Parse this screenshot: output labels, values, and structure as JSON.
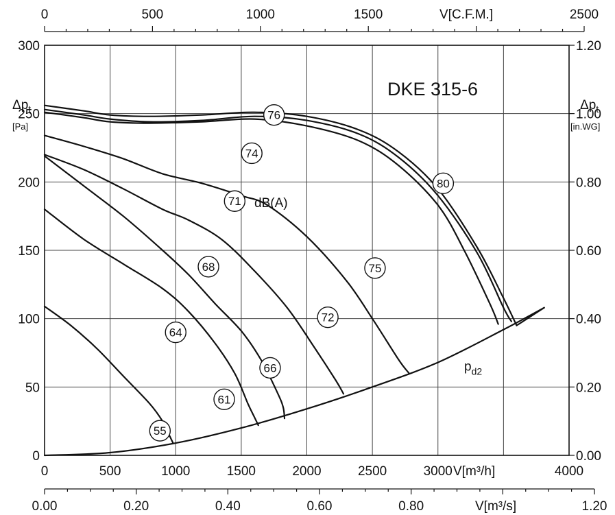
{
  "chart_data": {
    "type": "line",
    "title": "DKE 315-6",
    "left_axis": {
      "label_main": "Δp",
      "label_sub": "t",
      "unit": "[Pa]",
      "range": [
        0,
        300
      ],
      "ticks": [
        "0",
        "50",
        "100",
        "150",
        "200",
        "250",
        "300"
      ]
    },
    "right_axis": {
      "label_main": "Δp",
      "label_sub": "t",
      "unit": "[in.WG]",
      "range": [
        0,
        1.2
      ],
      "ticks": [
        "0.00",
        "0.20",
        "0.40",
        "0.60",
        "0.80",
        "1.00",
        "1.20"
      ]
    },
    "bottom_axis": {
      "label": "V[m³/h]",
      "range": [
        0,
        4000
      ],
      "ticks": [
        "0",
        "500",
        "1000",
        "1500",
        "2000",
        "2500",
        "3000",
        "4000"
      ]
    },
    "top_axis": {
      "label": "V[C.F.M.]",
      "range": [
        0,
        2500
      ],
      "ticks": [
        "0",
        "500",
        "1000",
        "1500",
        "2500"
      ]
    },
    "extra_bottom_axis": {
      "label": "V[m³/s]",
      "range": [
        0,
        1.2
      ],
      "ticks": [
        "0.00",
        "0.20",
        "0.40",
        "0.60",
        "0.80",
        "1.20"
      ]
    },
    "grid": true,
    "performance_curves": [
      {
        "points": [
          [
            0,
            256
          ],
          [
            300,
            252
          ],
          [
            500,
            249
          ],
          [
            800,
            248
          ],
          [
            1200,
            249
          ],
          [
            1600,
            251
          ],
          [
            2000,
            248
          ],
          [
            2400,
            238
          ],
          [
            2700,
            222
          ],
          [
            3000,
            195
          ],
          [
            3300,
            152
          ],
          [
            3500,
            115
          ],
          [
            3600,
            95
          ]
        ]
      },
      {
        "points": [
          [
            0,
            253
          ],
          [
            300,
            249
          ],
          [
            500,
            246
          ],
          [
            800,
            244
          ],
          [
            1200,
            245
          ],
          [
            1600,
            248
          ],
          [
            2000,
            245
          ],
          [
            2400,
            235
          ],
          [
            2700,
            218
          ],
          [
            3000,
            190
          ],
          [
            3300,
            148
          ],
          [
            3500,
            108
          ],
          [
            3560,
            98
          ]
        ]
      },
      {
        "points": [
          [
            0,
            251
          ],
          [
            300,
            247
          ],
          [
            500,
            244
          ],
          [
            800,
            243
          ],
          [
            1200,
            244
          ],
          [
            1600,
            246
          ],
          [
            2000,
            241
          ],
          [
            2400,
            230
          ],
          [
            2700,
            212
          ],
          [
            3000,
            183
          ],
          [
            3200,
            150
          ],
          [
            3400,
            110
          ],
          [
            3460,
            96
          ]
        ]
      },
      {
        "points": [
          [
            0,
            234
          ],
          [
            300,
            226
          ],
          [
            600,
            217
          ],
          [
            900,
            206
          ],
          [
            1200,
            199
          ],
          [
            1500,
            190
          ],
          [
            1700,
            183
          ],
          [
            2000,
            160
          ],
          [
            2300,
            128
          ],
          [
            2500,
            100
          ],
          [
            2700,
            70
          ],
          [
            2780,
            60
          ]
        ]
      },
      {
        "points": [
          [
            0,
            220
          ],
          [
            300,
            209
          ],
          [
            600,
            195
          ],
          [
            900,
            180
          ],
          [
            1100,
            172
          ],
          [
            1350,
            158
          ],
          [
            1600,
            135
          ],
          [
            1850,
            108
          ],
          [
            2050,
            80
          ],
          [
            2220,
            55
          ],
          [
            2280,
            45
          ]
        ]
      },
      {
        "points": [
          [
            0,
            219
          ],
          [
            300,
            197
          ],
          [
            600,
            175
          ],
          [
            900,
            150
          ],
          [
            1100,
            132
          ],
          [
            1300,
            111
          ],
          [
            1500,
            91
          ],
          [
            1650,
            70
          ],
          [
            1780,
            45
          ],
          [
            1820,
            35
          ],
          [
            1830,
            27
          ]
        ]
      },
      {
        "points": [
          [
            0,
            180
          ],
          [
            300,
            158
          ],
          [
            600,
            140
          ],
          [
            900,
            122
          ],
          [
            1100,
            105
          ],
          [
            1300,
            82
          ],
          [
            1450,
            60
          ],
          [
            1550,
            38
          ],
          [
            1600,
            28
          ],
          [
            1630,
            22
          ]
        ]
      },
      {
        "points": [
          [
            0,
            109
          ],
          [
            200,
            95
          ],
          [
            400,
            78
          ],
          [
            600,
            58
          ],
          [
            800,
            38
          ],
          [
            900,
            25
          ],
          [
            950,
            15
          ],
          [
            980,
            9
          ]
        ]
      }
    ],
    "system_curve": {
      "label_main": "p",
      "label_sub": "d2",
      "points": [
        [
          0,
          0
        ],
        [
          500,
          2
        ],
        [
          1000,
          9
        ],
        [
          1500,
          20
        ],
        [
          2000,
          34
        ],
        [
          2500,
          50
        ],
        [
          3000,
          68
        ],
        [
          3500,
          92
        ],
        [
          3810,
          108
        ]
      ]
    },
    "markers": [
      {
        "label": "76",
        "x": 1750,
        "y": 249
      },
      {
        "label": "80",
        "x": 3040,
        "y": 199
      },
      {
        "label": "74",
        "x": 1580,
        "y": 221
      },
      {
        "label": "71",
        "x": 1450,
        "y": 186
      },
      {
        "label": "75",
        "x": 2520,
        "y": 137
      },
      {
        "label": "68",
        "x": 1250,
        "y": 138
      },
      {
        "label": "72",
        "x": 2160,
        "y": 101
      },
      {
        "label": "64",
        "x": 1000,
        "y": 90
      },
      {
        "label": "66",
        "x": 1720,
        "y": 64
      },
      {
        "label": "61",
        "x": 1370,
        "y": 41
      },
      {
        "label": "55",
        "x": 880,
        "y": 18
      }
    ],
    "annotations": [
      {
        "text": "dB(A)",
        "x": 1600,
        "y": 185
      }
    ]
  }
}
